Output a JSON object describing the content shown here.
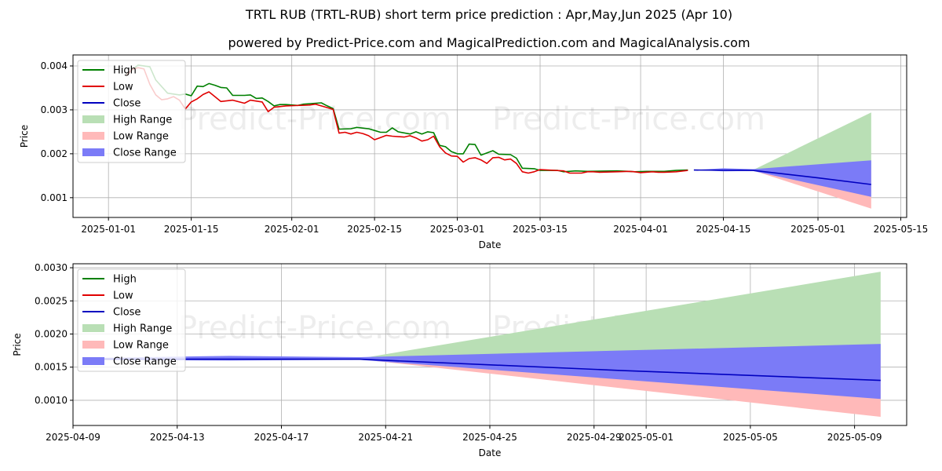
{
  "title": "TRTL RUB (TRTL-RUB) short term price prediction : Apr,May,Jun 2025 (Apr 10)",
  "subtitle": "powered by Predict-Price.com and MagicalPrediction.com and MagicalAnalysis.com",
  "watermark": "Predict-Price.com",
  "colors": {
    "high": "#008000",
    "low": "#e00000",
    "close": "#0000c0",
    "high_range": "#b9dfb5",
    "low_range": "#ffb9b9",
    "close_range": "#7b7bf7",
    "grid": "#b0b0b0"
  },
  "chart_data": [
    {
      "type": "line",
      "xlabel": "Date",
      "ylabel": "Price",
      "xlim": [
        "2024-12-26",
        "2025-05-16"
      ],
      "ylim": [
        0.00055,
        0.00425
      ],
      "x_ticks": [
        "2025-01-01",
        "2025-01-15",
        "2025-02-01",
        "2025-02-15",
        "2025-03-01",
        "2025-03-15",
        "2025-04-01",
        "2025-04-15",
        "2025-05-01",
        "2025-05-15"
      ],
      "y_ticks": [
        0.001,
        0.002,
        0.003,
        0.004
      ],
      "y_tick_labels": [
        "0.001",
        "0.002",
        "0.003",
        "0.004"
      ],
      "legend": {
        "position": "top-left",
        "entries": [
          "High",
          "Low",
          "Close",
          "High Range",
          "Low Range",
          "Close Range"
        ]
      },
      "series": {
        "high": [
          [
            "2025-01-04",
            0.0038
          ],
          [
            "2025-01-06",
            0.00402
          ],
          [
            "2025-01-08",
            0.00398
          ],
          [
            "2025-01-09",
            0.00368
          ],
          [
            "2025-01-11",
            0.00338
          ],
          [
            "2025-01-13",
            0.00334
          ],
          [
            "2025-01-14",
            0.00336
          ],
          [
            "2025-01-15",
            0.00332
          ],
          [
            "2025-01-16",
            0.00354
          ],
          [
            "2025-01-17",
            0.00353
          ],
          [
            "2025-01-18",
            0.0036
          ],
          [
            "2025-01-19",
            0.00356
          ],
          [
            "2025-01-20",
            0.00351
          ],
          [
            "2025-01-21",
            0.0035
          ],
          [
            "2025-01-22",
            0.00333
          ],
          [
            "2025-01-24",
            0.00333
          ],
          [
            "2025-01-25",
            0.00334
          ],
          [
            "2025-01-26",
            0.00326
          ],
          [
            "2025-01-27",
            0.00327
          ],
          [
            "2025-01-28",
            0.00319
          ],
          [
            "2025-01-29",
            0.00309
          ],
          [
            "2025-01-30",
            0.00312
          ],
          [
            "2025-01-31",
            0.00312
          ],
          [
            "2025-02-02",
            0.0031
          ],
          [
            "2025-02-03",
            0.00313
          ],
          [
            "2025-02-06",
            0.00316
          ],
          [
            "2025-02-07",
            0.00309
          ],
          [
            "2025-02-08",
            0.00303
          ],
          [
            "2025-02-09",
            0.00256
          ],
          [
            "2025-02-11",
            0.00257
          ],
          [
            "2025-02-12",
            0.0026
          ],
          [
            "2025-02-14",
            0.00257
          ],
          [
            "2025-02-15",
            0.00253
          ],
          [
            "2025-02-16",
            0.00249
          ],
          [
            "2025-02-17",
            0.00249
          ],
          [
            "2025-02-18",
            0.00259
          ],
          [
            "2025-02-19",
            0.0025
          ],
          [
            "2025-02-21",
            0.00245
          ],
          [
            "2025-02-22",
            0.0025
          ],
          [
            "2025-02-23",
            0.00245
          ],
          [
            "2025-02-24",
            0.0025
          ],
          [
            "2025-02-25",
            0.00248
          ],
          [
            "2025-02-26",
            0.00219
          ],
          [
            "2025-02-27",
            0.00216
          ],
          [
            "2025-02-28",
            0.00205
          ],
          [
            "2025-03-01",
            0.002
          ],
          [
            "2025-03-02",
            0.002
          ],
          [
            "2025-03-03",
            0.00222
          ],
          [
            "2025-03-04",
            0.00221
          ],
          [
            "2025-03-05",
            0.00197
          ],
          [
            "2025-03-07",
            0.00207
          ],
          [
            "2025-03-08",
            0.00199
          ],
          [
            "2025-03-10",
            0.00198
          ],
          [
            "2025-03-11",
            0.0019
          ],
          [
            "2025-03-12",
            0.00167
          ],
          [
            "2025-03-14",
            0.00166
          ],
          [
            "2025-03-15",
            0.00162
          ],
          [
            "2025-03-18",
            0.00162
          ],
          [
            "2025-03-19",
            0.00159
          ],
          [
            "2025-03-21",
            0.00161
          ],
          [
            "2025-03-23",
            0.0016
          ],
          [
            "2025-03-28",
            0.00161
          ],
          [
            "2025-03-30",
            0.0016
          ],
          [
            "2025-03-31",
            0.00159
          ],
          [
            "2025-04-02",
            0.0016
          ],
          [
            "2025-04-05",
            0.0016
          ],
          [
            "2025-04-06",
            0.00161
          ],
          [
            "2025-04-07",
            0.00162
          ],
          [
            "2025-04-09",
            0.00163
          ]
        ],
        "low": [
          [
            "2025-01-04",
            0.00378
          ],
          [
            "2025-01-05",
            0.00392
          ],
          [
            "2025-01-06",
            0.00396
          ],
          [
            "2025-01-07",
            0.00393
          ],
          [
            "2025-01-08",
            0.00358
          ],
          [
            "2025-01-09",
            0.00334
          ],
          [
            "2025-01-10",
            0.00323
          ],
          [
            "2025-01-11",
            0.00325
          ],
          [
            "2025-01-12",
            0.0033
          ],
          [
            "2025-01-13",
            0.00322
          ],
          [
            "2025-01-14",
            0.00302
          ],
          [
            "2025-01-15",
            0.00318
          ],
          [
            "2025-01-16",
            0.00325
          ],
          [
            "2025-01-17",
            0.00335
          ],
          [
            "2025-01-18",
            0.00341
          ],
          [
            "2025-01-19",
            0.0033
          ],
          [
            "2025-01-20",
            0.00319
          ],
          [
            "2025-01-22",
            0.00322
          ],
          [
            "2025-01-24",
            0.00315
          ],
          [
            "2025-01-25",
            0.00322
          ],
          [
            "2025-01-27",
            0.00318
          ],
          [
            "2025-01-28",
            0.00296
          ],
          [
            "2025-01-29",
            0.00306
          ],
          [
            "2025-01-31",
            0.00309
          ],
          [
            "2025-02-04",
            0.00311
          ],
          [
            "2025-02-05",
            0.00313
          ],
          [
            "2025-02-06",
            0.00309
          ],
          [
            "2025-02-07",
            0.00305
          ],
          [
            "2025-02-08",
            0.00301
          ],
          [
            "2025-02-09",
            0.00247
          ],
          [
            "2025-02-10",
            0.00249
          ],
          [
            "2025-02-11",
            0.00245
          ],
          [
            "2025-02-12",
            0.00249
          ],
          [
            "2025-02-13",
            0.00246
          ],
          [
            "2025-02-14",
            0.00241
          ],
          [
            "2025-02-15",
            0.00232
          ],
          [
            "2025-02-16",
            0.00237
          ],
          [
            "2025-02-17",
            0.00242
          ],
          [
            "2025-02-18",
            0.0024
          ],
          [
            "2025-02-20",
            0.00238
          ],
          [
            "2025-02-21",
            0.00241
          ],
          [
            "2025-02-22",
            0.00236
          ],
          [
            "2025-02-23",
            0.00229
          ],
          [
            "2025-02-24",
            0.00232
          ],
          [
            "2025-02-25",
            0.0024
          ],
          [
            "2025-02-26",
            0.00216
          ],
          [
            "2025-02-27",
            0.00202
          ],
          [
            "2025-02-28",
            0.00195
          ],
          [
            "2025-03-01",
            0.00194
          ],
          [
            "2025-03-02",
            0.00181
          ],
          [
            "2025-03-03",
            0.00189
          ],
          [
            "2025-03-04",
            0.00191
          ],
          [
            "2025-03-05",
            0.00186
          ],
          [
            "2025-03-06",
            0.00178
          ],
          [
            "2025-03-07",
            0.00191
          ],
          [
            "2025-03-08",
            0.00192
          ],
          [
            "2025-03-09",
            0.00186
          ],
          [
            "2025-03-10",
            0.00188
          ],
          [
            "2025-03-11",
            0.00178
          ],
          [
            "2025-03-12",
            0.00159
          ],
          [
            "2025-03-13",
            0.00156
          ],
          [
            "2025-03-14",
            0.00159
          ],
          [
            "2025-03-15",
            0.00164
          ],
          [
            "2025-03-19",
            0.00161
          ],
          [
            "2025-03-20",
            0.00156
          ],
          [
            "2025-03-22",
            0.00156
          ],
          [
            "2025-03-23",
            0.00159
          ],
          [
            "2025-03-24",
            0.00159
          ],
          [
            "2025-03-25",
            0.00158
          ],
          [
            "2025-03-28",
            0.00159
          ],
          [
            "2025-03-30",
            0.0016
          ],
          [
            "2025-03-31",
            0.00159
          ],
          [
            "2025-04-01",
            0.00157
          ],
          [
            "2025-04-03",
            0.00159
          ],
          [
            "2025-04-04",
            0.00158
          ],
          [
            "2025-04-05",
            0.00158
          ],
          [
            "2025-04-07",
            0.00159
          ],
          [
            "2025-04-09",
            0.00162
          ]
        ],
        "close_forecast": [
          [
            "2025-04-10",
            0.00163
          ],
          [
            "2025-04-20",
            0.00162
          ],
          [
            "2025-05-01",
            0.00145
          ],
          [
            "2025-05-10",
            0.0013
          ]
        ],
        "high_range": {
          "upper": [
            [
              "2025-04-10",
              0.00163
            ],
            [
              "2025-04-20",
              0.00163
            ],
            [
              "2025-05-10",
              0.00294
            ]
          ],
          "lower": [
            [
              "2025-04-10",
              0.00163
            ],
            [
              "2025-04-20",
              0.00163
            ],
            [
              "2025-05-10",
              0.00163
            ]
          ]
        },
        "low_range": {
          "upper": [
            [
              "2025-04-10",
              0.00163
            ],
            [
              "2025-04-20",
              0.00162
            ],
            [
              "2025-05-10",
              0.00163
            ]
          ],
          "lower": [
            [
              "2025-04-10",
              0.00163
            ],
            [
              "2025-04-20",
              0.00162
            ],
            [
              "2025-05-10",
              0.00075
            ]
          ]
        },
        "close_range": {
          "upper": [
            [
              "2025-04-10",
              0.00163
            ],
            [
              "2025-04-15",
              0.00167
            ],
            [
              "2025-04-20",
              0.00165
            ],
            [
              "2025-05-10",
              0.00185
            ]
          ],
          "lower": [
            [
              "2025-04-10",
              0.00163
            ],
            [
              "2025-04-15",
              0.0016
            ],
            [
              "2025-04-20",
              0.00161
            ],
            [
              "2025-05-10",
              0.00102
            ]
          ]
        }
      }
    },
    {
      "type": "line",
      "xlabel": "Date",
      "ylabel": "Price",
      "xlim": [
        "2025-04-09",
        "2025-05-11"
      ],
      "ylim": [
        0.00062,
        0.00306
      ],
      "x_ticks": [
        "2025-04-09",
        "2025-04-13",
        "2025-04-17",
        "2025-04-21",
        "2025-04-25",
        "2025-04-29",
        "2025-05-01",
        "2025-05-05",
        "2025-05-09"
      ],
      "y_ticks": [
        0.001,
        0.0015,
        0.002,
        0.0025,
        0.003
      ],
      "y_tick_labels": [
        "0.0010",
        "0.0015",
        "0.0020",
        "0.0025",
        "0.0030"
      ],
      "legend": {
        "position": "top-left",
        "entries": [
          "High",
          "Low",
          "Close",
          "High Range",
          "Low Range",
          "Close Range"
        ]
      },
      "series": {
        "close_forecast": [
          [
            "2025-04-10",
            0.00162
          ],
          [
            "2025-04-20",
            0.00162
          ],
          [
            "2025-04-30",
            0.00145
          ],
          [
            "2025-05-10",
            0.0013
          ]
        ],
        "high_range": {
          "upper": [
            [
              "2025-04-10",
              0.00163
            ],
            [
              "2025-04-20",
              0.00163
            ],
            [
              "2025-05-10",
              0.00294
            ]
          ],
          "lower": [
            [
              "2025-04-10",
              0.00162
            ],
            [
              "2025-04-20",
              0.00162
            ],
            [
              "2025-05-10",
              0.00162
            ]
          ]
        },
        "low_range": {
          "upper": [
            [
              "2025-04-10",
              0.00162
            ],
            [
              "2025-04-20",
              0.00162
            ],
            [
              "2025-05-10",
              0.00162
            ]
          ],
          "lower": [
            [
              "2025-04-10",
              0.00161
            ],
            [
              "2025-04-20",
              0.00162
            ],
            [
              "2025-05-10",
              0.00075
            ]
          ]
        },
        "close_range": {
          "upper": [
            [
              "2025-04-10",
              0.00164
            ],
            [
              "2025-04-15",
              0.00167
            ],
            [
              "2025-04-20",
              0.00165
            ],
            [
              "2025-05-10",
              0.00185
            ]
          ],
          "lower": [
            [
              "2025-04-10",
              0.00161
            ],
            [
              "2025-04-15",
              0.0016
            ],
            [
              "2025-04-20",
              0.00161
            ],
            [
              "2025-05-10",
              0.00102
            ]
          ]
        }
      }
    }
  ]
}
